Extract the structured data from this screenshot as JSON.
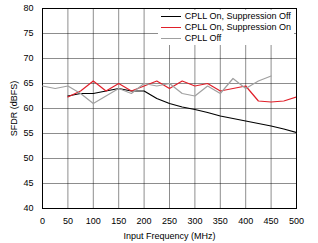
{
  "chart_data": {
    "type": "line",
    "xlabel": "Input Frequency (MHz)",
    "ylabel": "SFDR (dBFS)",
    "x": [
      0,
      25,
      50,
      75,
      100,
      125,
      150,
      175,
      200,
      225,
      250,
      275,
      300,
      325,
      350,
      375,
      400,
      425,
      450,
      475,
      500
    ],
    "series": [
      {
        "name": "CPLL On, Suppression Off",
        "color": "#000000",
        "values": [
          null,
          null,
          62.5,
          63,
          63,
          63.5,
          64,
          63.5,
          63.5,
          62,
          61,
          60.3,
          59.8,
          59.2,
          58.5,
          58,
          57.5,
          57,
          56.5,
          55.9,
          55.2
        ]
      },
      {
        "name": "CPLL On, Suppression On",
        "color": "#e0202a",
        "values": [
          null,
          null,
          62.3,
          63.5,
          65.5,
          63.5,
          65,
          63.5,
          64.5,
          65.5,
          64,
          65.5,
          64.5,
          65,
          63.5,
          64,
          64.5,
          61.5,
          61.3,
          61.5,
          62.3
        ]
      },
      {
        "name": "CPLL Off",
        "color": "#a0a0a0",
        "values": [
          64.5,
          64,
          64.5,
          63,
          61,
          62.5,
          64,
          63,
          65,
          64.5,
          65,
          63,
          62.5,
          64.5,
          63,
          66,
          64,
          65.5,
          66.5,
          null,
          null
        ]
      }
    ],
    "xlim": [
      0,
      500
    ],
    "xticks": [
      0,
      50,
      100,
      150,
      200,
      250,
      300,
      350,
      400,
      450,
      500
    ],
    "ylim": [
      40,
      80
    ],
    "yticks": [
      40,
      45,
      50,
      55,
      60,
      65,
      70,
      75,
      80
    ],
    "grid": true,
    "legend": "top-right"
  }
}
